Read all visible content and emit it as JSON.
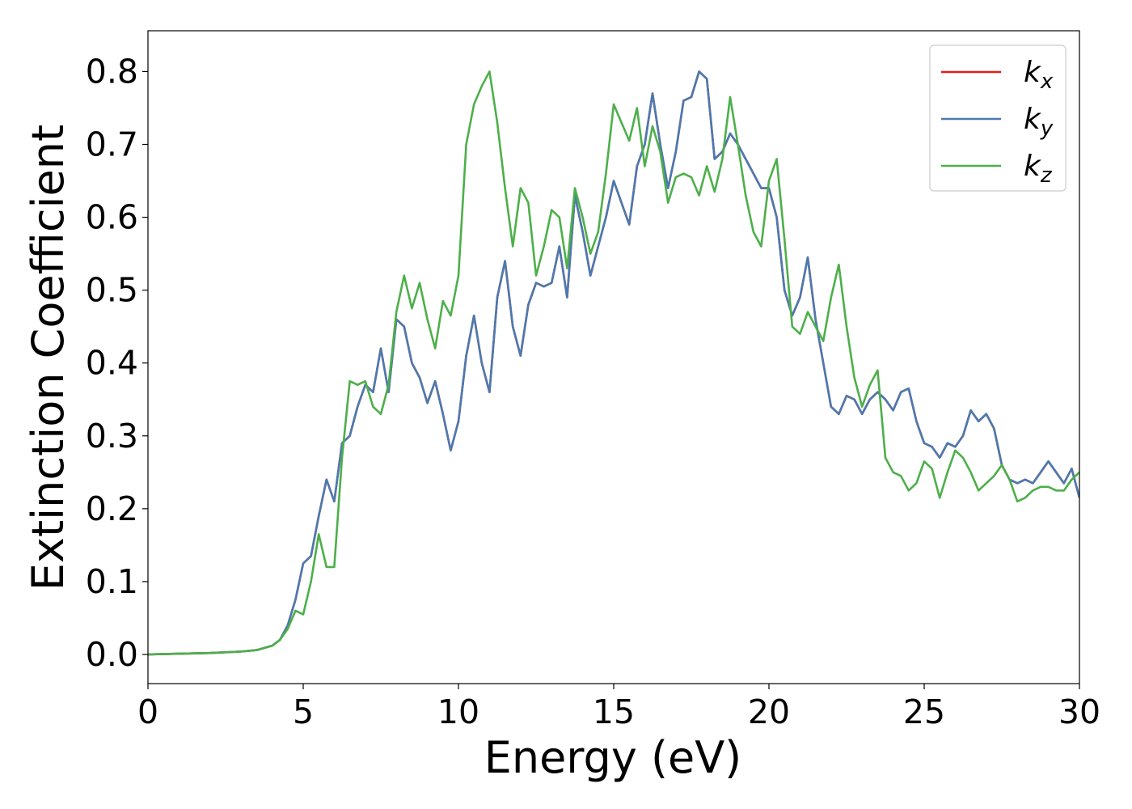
{
  "chart_data": {
    "type": "line",
    "xlabel": "Energy (eV)",
    "ylabel": "Extinction Coefficient",
    "x": [
      0,
      1,
      2,
      3,
      3.5,
      4,
      4.25,
      4.5,
      4.75,
      5,
      5.25,
      5.5,
      5.75,
      6,
      6.25,
      6.5,
      6.75,
      7,
      7.25,
      7.5,
      7.75,
      8,
      8.25,
      8.5,
      8.75,
      9,
      9.25,
      9.5,
      9.75,
      10,
      10.25,
      10.5,
      10.75,
      11,
      11.25,
      11.5,
      11.75,
      12,
      12.25,
      12.5,
      12.75,
      13,
      13.25,
      13.5,
      13.75,
      14,
      14.25,
      14.5,
      14.75,
      15,
      15.25,
      15.5,
      15.75,
      16,
      16.25,
      16.5,
      16.75,
      17,
      17.25,
      17.5,
      17.75,
      18,
      18.25,
      18.5,
      18.75,
      19,
      19.25,
      19.5,
      19.75,
      20,
      20.25,
      20.5,
      20.75,
      21,
      21.25,
      21.5,
      21.75,
      22,
      22.25,
      22.5,
      22.75,
      23,
      23.25,
      23.5,
      23.75,
      24,
      24.25,
      24.5,
      24.75,
      25,
      25.25,
      25.5,
      25.75,
      26,
      26.25,
      26.5,
      26.75,
      27,
      27.25,
      27.5,
      27.75,
      28,
      28.25,
      28.5,
      28.75,
      29,
      29.25,
      29.5,
      29.75,
      30
    ],
    "series": [
      {
        "name": "kx",
        "color": "#e41a1c",
        "values": [
          0.0,
          0.001,
          0.002,
          0.004,
          0.006,
          0.012,
          0.02,
          0.04,
          0.075,
          0.125,
          0.135,
          0.19,
          0.24,
          0.21,
          0.29,
          0.3,
          0.34,
          0.37,
          0.36,
          0.42,
          0.36,
          0.46,
          0.45,
          0.4,
          0.38,
          0.345,
          0.375,
          0.33,
          0.28,
          0.32,
          0.41,
          0.465,
          0.4,
          0.36,
          0.49,
          0.54,
          0.45,
          0.41,
          0.48,
          0.51,
          0.505,
          0.51,
          0.56,
          0.49,
          0.63,
          0.58,
          0.52,
          0.56,
          0.6,
          0.65,
          0.62,
          0.59,
          0.67,
          0.7,
          0.77,
          0.7,
          0.64,
          0.69,
          0.76,
          0.765,
          0.8,
          0.79,
          0.68,
          0.69,
          0.715,
          0.7,
          0.68,
          0.66,
          0.64,
          0.64,
          0.6,
          0.5,
          0.465,
          0.49,
          0.545,
          0.46,
          0.4,
          0.34,
          0.33,
          0.355,
          0.35,
          0.33,
          0.35,
          0.36,
          0.35,
          0.335,
          0.36,
          0.365,
          0.32,
          0.29,
          0.285,
          0.27,
          0.29,
          0.285,
          0.3,
          0.335,
          0.32,
          0.33,
          0.31,
          0.26,
          0.24,
          0.235,
          0.24,
          0.235,
          0.25,
          0.265,
          0.25,
          0.235,
          0.255,
          0.215
        ]
      },
      {
        "name": "ky",
        "color": "#4a7ab0",
        "values": [
          0.0,
          0.001,
          0.002,
          0.004,
          0.006,
          0.012,
          0.02,
          0.04,
          0.075,
          0.125,
          0.135,
          0.19,
          0.24,
          0.21,
          0.29,
          0.3,
          0.34,
          0.37,
          0.36,
          0.42,
          0.36,
          0.46,
          0.45,
          0.4,
          0.38,
          0.345,
          0.375,
          0.33,
          0.28,
          0.32,
          0.41,
          0.465,
          0.4,
          0.36,
          0.49,
          0.54,
          0.45,
          0.41,
          0.48,
          0.51,
          0.505,
          0.51,
          0.56,
          0.49,
          0.63,
          0.58,
          0.52,
          0.56,
          0.6,
          0.65,
          0.62,
          0.59,
          0.67,
          0.7,
          0.77,
          0.7,
          0.64,
          0.69,
          0.76,
          0.765,
          0.8,
          0.79,
          0.68,
          0.69,
          0.715,
          0.7,
          0.68,
          0.66,
          0.64,
          0.64,
          0.6,
          0.5,
          0.465,
          0.49,
          0.545,
          0.46,
          0.4,
          0.34,
          0.33,
          0.355,
          0.35,
          0.33,
          0.35,
          0.36,
          0.35,
          0.335,
          0.36,
          0.365,
          0.32,
          0.29,
          0.285,
          0.27,
          0.29,
          0.285,
          0.3,
          0.335,
          0.32,
          0.33,
          0.31,
          0.26,
          0.24,
          0.235,
          0.24,
          0.235,
          0.25,
          0.265,
          0.25,
          0.235,
          0.255,
          0.215
        ]
      },
      {
        "name": "kz",
        "color": "#4daf4a",
        "values": [
          0.0,
          0.001,
          0.002,
          0.004,
          0.006,
          0.012,
          0.02,
          0.035,
          0.06,
          0.055,
          0.1,
          0.165,
          0.12,
          0.12,
          0.27,
          0.375,
          0.37,
          0.375,
          0.34,
          0.33,
          0.37,
          0.47,
          0.52,
          0.475,
          0.51,
          0.46,
          0.42,
          0.485,
          0.465,
          0.52,
          0.7,
          0.755,
          0.78,
          0.8,
          0.73,
          0.64,
          0.56,
          0.64,
          0.62,
          0.52,
          0.56,
          0.61,
          0.6,
          0.53,
          0.64,
          0.6,
          0.55,
          0.58,
          0.66,
          0.755,
          0.73,
          0.705,
          0.75,
          0.67,
          0.725,
          0.69,
          0.62,
          0.655,
          0.66,
          0.655,
          0.63,
          0.67,
          0.635,
          0.68,
          0.765,
          0.7,
          0.63,
          0.58,
          0.56,
          0.65,
          0.68,
          0.57,
          0.45,
          0.44,
          0.47,
          0.45,
          0.43,
          0.49,
          0.535,
          0.45,
          0.38,
          0.34,
          0.37,
          0.39,
          0.27,
          0.25,
          0.245,
          0.225,
          0.235,
          0.265,
          0.255,
          0.215,
          0.25,
          0.28,
          0.27,
          0.25,
          0.225,
          0.235,
          0.245,
          0.26,
          0.24,
          0.21,
          0.215,
          0.225,
          0.23,
          0.23,
          0.225,
          0.225,
          0.24,
          0.25
        ]
      }
    ],
    "xlim": [
      0,
      30
    ],
    "xticks": [
      0,
      5,
      10,
      15,
      20,
      25,
      30
    ],
    "ylim": [
      -0.04,
      0.856
    ],
    "yticks": [
      {
        "value": 0,
        "label": "0.0"
      },
      0.1,
      0.2,
      0.3,
      0.4,
      0.5,
      0.6,
      0.7,
      0.8
    ],
    "legend": "upper right"
  }
}
